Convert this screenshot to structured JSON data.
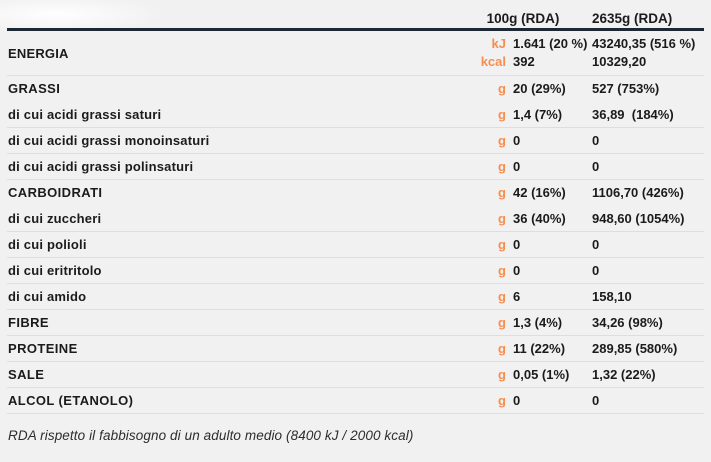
{
  "header": {
    "col_100g": "100g (RDA)",
    "col_2635g": "2635g (RDA)"
  },
  "energy": {
    "label": "ENERGIA",
    "unit_kj": "kJ",
    "unit_kcal": "kcal",
    "v100_kj": "1.641 (20 %)",
    "v100_kcal": "392",
    "v2635_kj": "43240,35 (516 %)",
    "v2635_kcal": "10329,20"
  },
  "rows": [
    {
      "label": "GRASSI",
      "style": "main",
      "unit": "g",
      "v100": "20 (29%)",
      "v2635": "527 (753%)"
    },
    {
      "label": "di cui acidi grassi saturi",
      "style": "sub",
      "unit": "g",
      "v100": "1,4 (7%)",
      "v2635": "36,89  (184%)"
    },
    {
      "label": "di cui acidi grassi monoinsaturi",
      "style": "sub",
      "unit": "g",
      "v100": "0",
      "v2635": "0"
    },
    {
      "label": "di cui acidi grassi polinsaturi",
      "style": "sub",
      "unit": "g",
      "v100": "0",
      "v2635": "0"
    },
    {
      "label": "CARBOIDRATI",
      "style": "main",
      "unit": "g",
      "v100": "42 (16%)",
      "v2635": "1106,70 (426%)"
    },
    {
      "label": "di cui zuccheri",
      "style": "sub",
      "unit": "g",
      "v100": "36 (40%)",
      "v2635": "948,60 (1054%)"
    },
    {
      "label": "di cui polioli",
      "style": "sub",
      "unit": "g",
      "v100": "0",
      "v2635": "0"
    },
    {
      "label": "di cui eritritolo",
      "style": "sub",
      "unit": "g",
      "v100": "0",
      "v2635": "0"
    },
    {
      "label": "di cui amido",
      "style": "sub",
      "unit": "g",
      "v100": "6",
      "v2635": "158,10"
    },
    {
      "label": "FIBRE",
      "style": "main",
      "unit": "g",
      "v100": "1,3 (4%)",
      "v2635": "34,26 (98%)"
    },
    {
      "label": "PROTEINE",
      "style": "main",
      "unit": "g",
      "v100": "11 (22%)",
      "v2635": "289,85 (580%)"
    },
    {
      "label": "SALE",
      "style": "main",
      "unit": "g",
      "v100": "0,05 (1%)",
      "v2635": "1,32 (22%)"
    },
    {
      "label": "ALCOL (ETANOLO)",
      "style": "main",
      "unit": "g",
      "v100": "0",
      "v2635": "0"
    }
  ],
  "footer": {
    "note": "RDA rispetto il fabbisogno di un adulto medio (8400 kJ / 2000 kcal)"
  },
  "colors": {
    "accent_orange": "#f78e4e",
    "header_rule": "#1c2833",
    "divider": "#dedee1",
    "text": "#1b1b1d",
    "background": "#f1f1f2"
  }
}
